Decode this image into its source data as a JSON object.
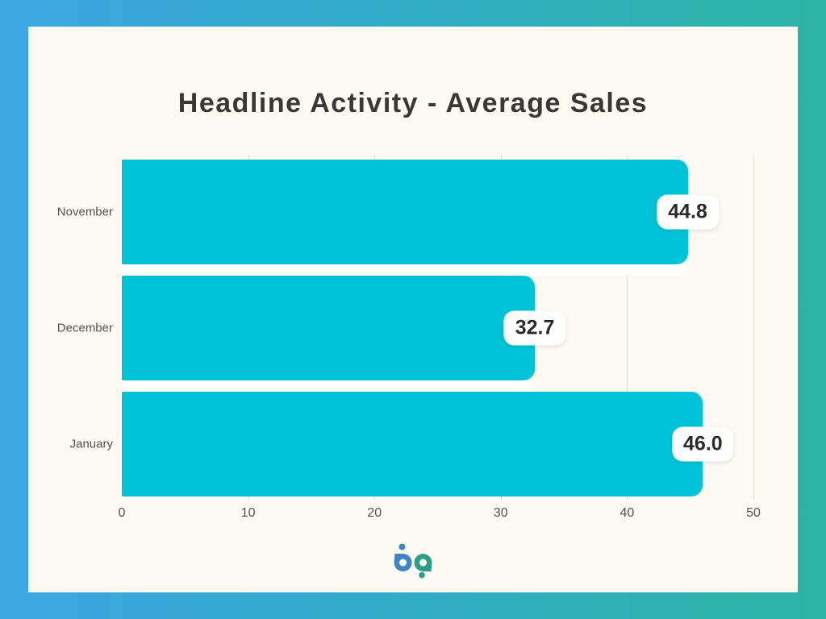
{
  "frame": {
    "gradient_left_color": "#3da6e2",
    "gradient_right_color": "#2bb3a3",
    "card_background": "#fdfaf1"
  },
  "chart_data": {
    "type": "bar",
    "orientation": "horizontal",
    "title": "Headline Activity - Average Sales",
    "categories": [
      "November",
      "December",
      "January"
    ],
    "values": [
      44.8,
      32.7,
      46.0
    ],
    "value_labels": [
      "44.8",
      "32.7",
      "46.0"
    ],
    "x_ticks": [
      0,
      10,
      20,
      30,
      40,
      50
    ],
    "xlim": [
      0,
      50
    ],
    "xlabel": "",
    "ylabel": "",
    "grid": "vertical-gridlines-behind-bars",
    "legend": "none",
    "bar_color": "#00c3d8",
    "data_label_style": "white-rounded-badge-at-bar-end"
  },
  "logo": {
    "name": "bp",
    "blue": "#3e86c6",
    "teal": "#2f9e89"
  }
}
